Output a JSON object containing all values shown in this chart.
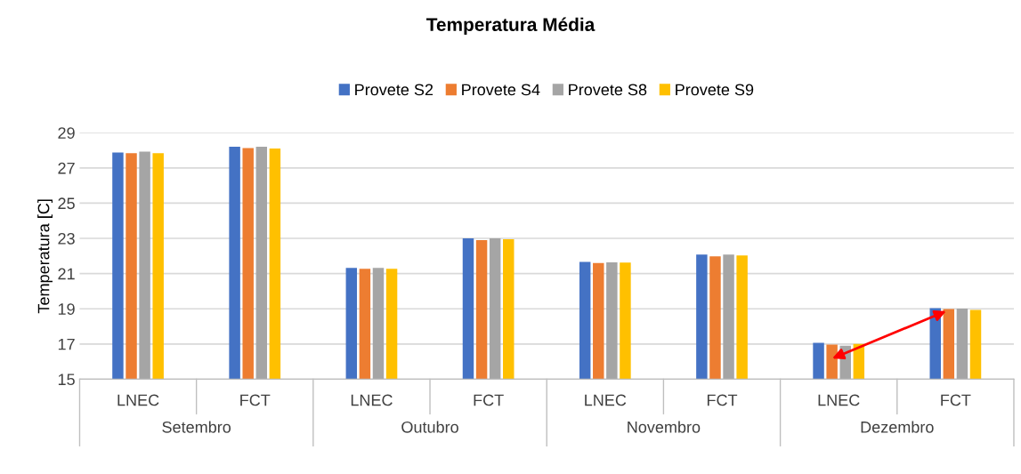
{
  "chart_data": {
    "type": "bar",
    "title": "Temperatura Média",
    "ylabel": "Temperatura [C]",
    "categories": [
      "LNEC",
      "FCT",
      "LNEC",
      "FCT",
      "LNEC",
      "FCT",
      "LNEC",
      "FCT"
    ],
    "series": [
      {
        "name": "Provete S2",
        "color": "#4472c4",
        "values": [
          27.88,
          28.2,
          21.32,
          23.0,
          21.66,
          22.08,
          17.07,
          19.03
        ]
      },
      {
        "name": "Provete S4",
        "color": "#ed7d31",
        "values": [
          27.84,
          28.13,
          21.27,
          22.9,
          21.6,
          21.98,
          16.96,
          18.99
        ]
      },
      {
        "name": "Provete S8",
        "color": "#a5a5a5",
        "values": [
          27.93,
          28.21,
          21.32,
          23.0,
          21.64,
          22.08,
          16.9,
          19.01
        ]
      },
      {
        "name": "Provete S9",
        "color": "#ffc000",
        "values": [
          27.84,
          28.1,
          21.27,
          22.95,
          21.63,
          22.03,
          17.0,
          18.94
        ]
      }
    ],
    "annotations": [
      "Setembro",
      "Outubro",
      "Novembro",
      "Dezembro"
    ],
    "ylim": [
      15,
      29
    ],
    "yticks": [
      15,
      17,
      19,
      21,
      23,
      25,
      27,
      29
    ],
    "grid": "y",
    "legend": "top"
  }
}
